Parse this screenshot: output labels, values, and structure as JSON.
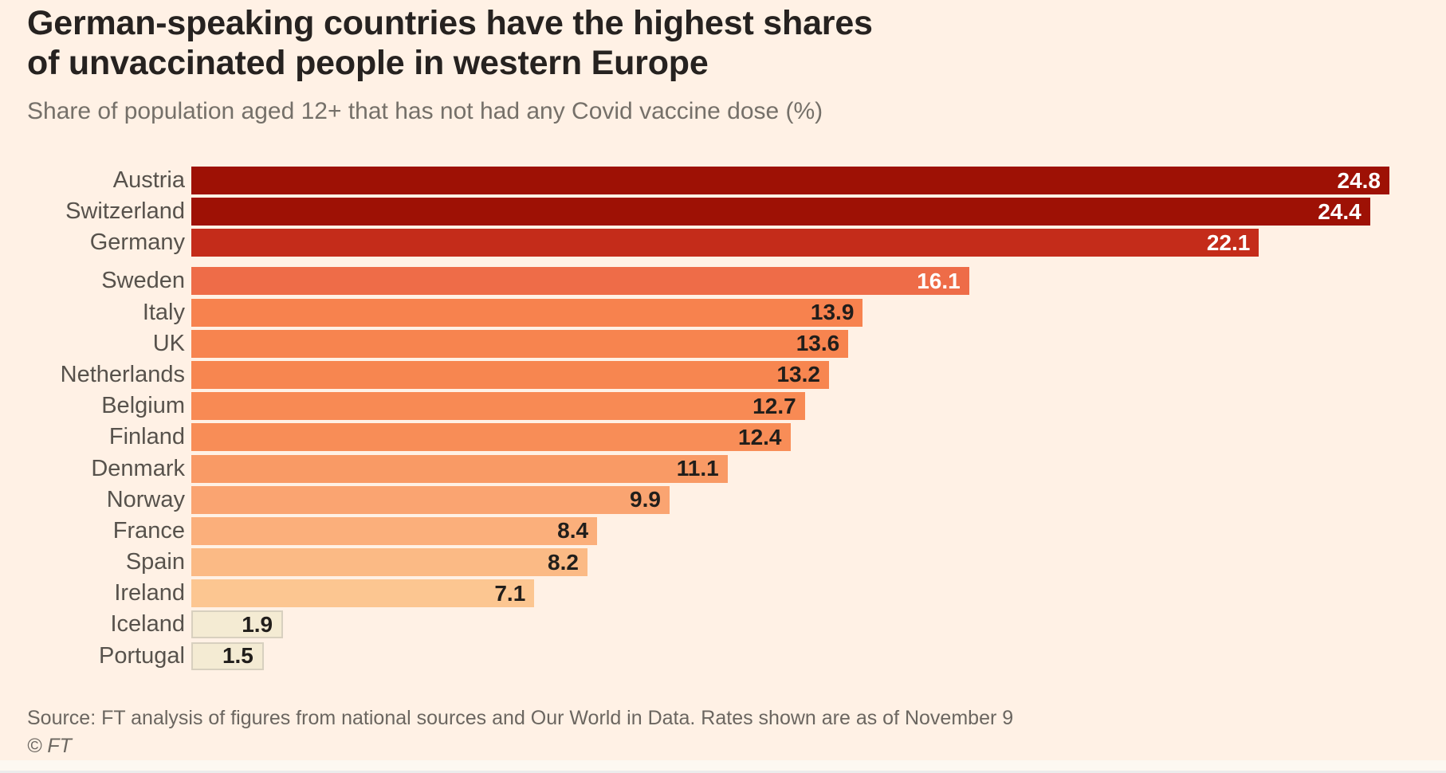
{
  "header": {
    "title_line1": "German-speaking countries have the highest shares",
    "title_line2": "of unvaccinated people in western Europe",
    "subtitle": "Share of population aged 12+ that has not had any Covid vaccine dose (%)"
  },
  "chart_data": {
    "type": "bar",
    "orientation": "horizontal",
    "title": "German-speaking countries have the highest shares of unvaccinated people in western Europe",
    "subtitle": "Share of population aged 12+ that has not had any Covid vaccine dose (%)",
    "unit": "%",
    "xlim": [
      0,
      24.8
    ],
    "grid": false,
    "legend": "none",
    "value_label_position": "inside-end",
    "group_break_before": "Sweden",
    "categories": [
      "Austria",
      "Switzerland",
      "Germany",
      "Sweden",
      "Italy",
      "UK",
      "Netherlands",
      "Belgium",
      "Finland",
      "Denmark",
      "Norway",
      "France",
      "Spain",
      "Ireland",
      "Iceland",
      "Portugal"
    ],
    "values": [
      24.8,
      24.4,
      22.1,
      16.1,
      13.9,
      13.6,
      13.2,
      12.7,
      12.4,
      11.1,
      9.9,
      8.4,
      8.2,
      7.1,
      1.9,
      1.5
    ],
    "bar_colors": [
      "#9E1105",
      "#9E1105",
      "#C42C1A",
      "#EE6C48",
      "#F7824E",
      "#F7844F",
      "#F78650",
      "#F88A54",
      "#F88D57",
      "#F99A65",
      "#FAA471",
      "#FBAF7B",
      "#FBBA85",
      "#FCC691",
      "#F4EBD3",
      "#F4EBD3"
    ],
    "value_text_styles": [
      "light",
      "light",
      "light",
      "light",
      "dark",
      "dark",
      "dark",
      "dark",
      "dark",
      "dark",
      "dark",
      "dark",
      "dark",
      "dark",
      "dark",
      "dark"
    ],
    "outlined_bars": [
      false,
      false,
      false,
      false,
      false,
      false,
      false,
      false,
      false,
      false,
      false,
      false,
      false,
      false,
      true,
      true
    ]
  },
  "footer": {
    "source": "Source: FT analysis of figures from national sources and Our World in Data. Rates shown are as of November 9",
    "copyright": "© FT"
  },
  "theme": {
    "background": "#FFF1E5",
    "title_color": "#262220",
    "subtitle_color": "#757069",
    "country_label_color": "#57524C",
    "source_color": "#6B6660",
    "outline_border_color": "#D8D0BF",
    "value_light_color": "#FFFFFF",
    "value_dark_color": "#211E1B"
  }
}
